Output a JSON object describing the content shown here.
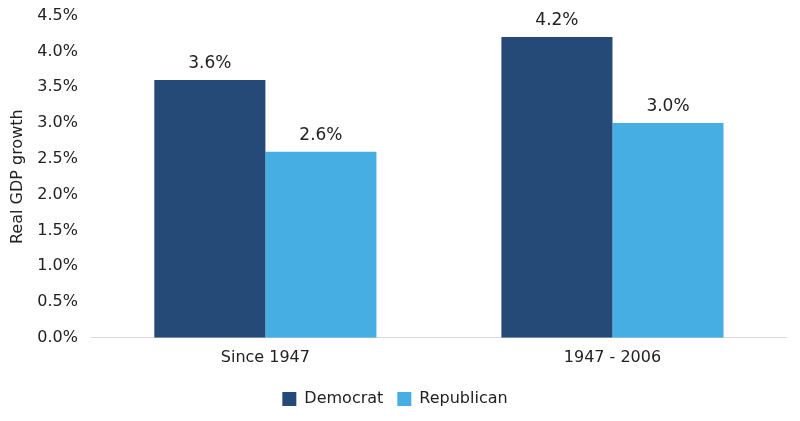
{
  "chart_data": {
    "type": "bar",
    "y_label": "Real GDP growth",
    "categories": [
      "Since 1947",
      "1947 - 2006"
    ],
    "series": [
      {
        "name": "Democrat",
        "color": "#264a78",
        "values": [
          3.6,
          4.2
        ],
        "value_labels": [
          "3.6%",
          "4.2%"
        ]
      },
      {
        "name": "Republican",
        "color": "#47aee3",
        "values": [
          2.6,
          3.0
        ],
        "value_labels": [
          "2.6%",
          "3.0%"
        ]
      }
    ],
    "ylim": [
      0,
      4.5
    ],
    "yticks": [
      {
        "value": 0,
        "label": "0.0%"
      },
      {
        "value": 0.5,
        "label": "0.5%"
      },
      {
        "value": 1,
        "label": "1.0%"
      },
      {
        "value": 1.5,
        "label": "1.5%"
      },
      {
        "value": 2,
        "label": "2.0%"
      },
      {
        "value": 2.5,
        "label": "2.5%"
      },
      {
        "value": 3,
        "label": "3.0%"
      },
      {
        "value": 3.5,
        "label": "3.5%"
      },
      {
        "value": 4,
        "label": "4.0%"
      },
      {
        "value": 4.5,
        "label": "4.5%"
      }
    ],
    "grid": false,
    "legend": "bottom",
    "data_labels": true
  }
}
